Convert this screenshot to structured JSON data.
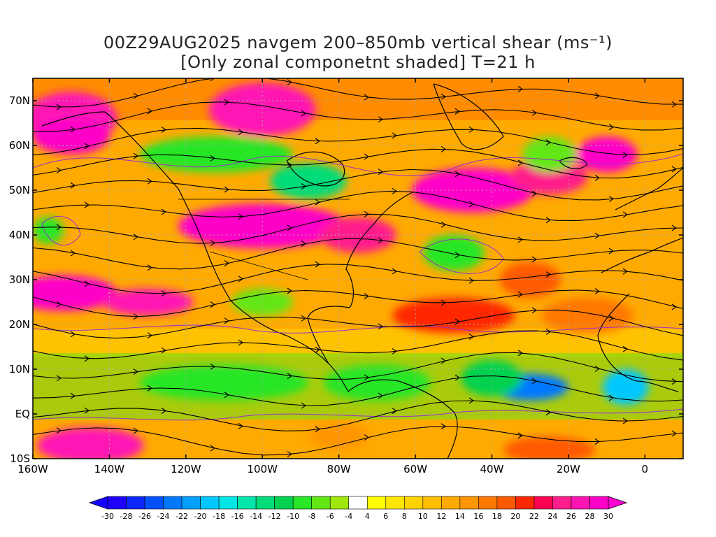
{
  "title": {
    "line1": "00Z29AUG2025 navgem 200–850mb vertical shear (ms⁻¹)",
    "line2": "[Only zonal componetnt shaded] T=21 h"
  },
  "axes": {
    "lat_labels": [
      "70N",
      "60N",
      "50N",
      "40N",
      "30N",
      "20N",
      "10N",
      "EQ",
      "10S"
    ],
    "lon_labels": [
      "160W",
      "140W",
      "120W",
      "100W",
      "80W",
      "60W",
      "40W",
      "20W",
      "0"
    ]
  },
  "colorbar": {
    "labels": [
      "-30",
      "-28",
      "-26",
      "-24",
      "-22",
      "-20",
      "-18",
      "-16",
      "-14",
      "-12",
      "-10",
      "-8",
      "-6",
      "-4",
      "4",
      "6",
      "8",
      "10",
      "12",
      "14",
      "16",
      "18",
      "20",
      "22",
      "24",
      "26",
      "28",
      "30"
    ],
    "colors": [
      "#1e00ff",
      "#0a28ff",
      "#0050ff",
      "#0078ff",
      "#00a0ff",
      "#00c8ff",
      "#00e6e6",
      "#00e6aa",
      "#00dc78",
      "#00d250",
      "#28e628",
      "#64e614",
      "#a0e60a",
      "#ffffff",
      "#ffff00",
      "#ffe600",
      "#ffd200",
      "#ffbe00",
      "#ffaa00",
      "#ff9600",
      "#ff7800",
      "#ff5a00",
      "#ff2800",
      "#ff0050",
      "#ff1e8c",
      "#ff14b4",
      "#ff00c8"
    ],
    "under_color": "#1400ff",
    "over_color": "#ff00d2"
  },
  "shear_blobs": [
    {
      "lon": -150,
      "lat": 66,
      "rx": 12,
      "ry": 6,
      "value": 26
    },
    {
      "lon": -100,
      "lat": 68,
      "rx": 14,
      "ry": 6,
      "value": 26
    },
    {
      "lon": -150,
      "lat": 62,
      "rx": 10,
      "ry": 4,
      "value": 28
    },
    {
      "lon": -112,
      "lat": 58,
      "rx": 20,
      "ry": 4,
      "value": -10
    },
    {
      "lon": -88,
      "lat": 52,
      "rx": 10,
      "ry": 4,
      "value": -14
    },
    {
      "lon": -100,
      "lat": 42,
      "rx": 22,
      "ry": 5,
      "value": 28
    },
    {
      "lon": -75,
      "lat": 40,
      "rx": 10,
      "ry": 4,
      "value": 24
    },
    {
      "lon": -45,
      "lat": 50,
      "rx": 16,
      "ry": 5,
      "value": 28
    },
    {
      "lon": -25,
      "lat": 53,
      "rx": 10,
      "ry": 4,
      "value": 24
    },
    {
      "lon": -10,
      "lat": 58,
      "rx": 8,
      "ry": 4,
      "value": 28
    },
    {
      "lon": -25,
      "lat": 58,
      "rx": 7,
      "ry": 4,
      "value": -8
    },
    {
      "lon": -50,
      "lat": 36,
      "rx": 8,
      "ry": 4,
      "value": -10
    },
    {
      "lon": -152,
      "lat": 27,
      "rx": 14,
      "ry": 4,
      "value": 28
    },
    {
      "lon": -130,
      "lat": 25,
      "rx": 12,
      "ry": 3,
      "value": 26
    },
    {
      "lon": -100,
      "lat": 25,
      "rx": 8,
      "ry": 3,
      "value": -8
    },
    {
      "lon": -156,
      "lat": 41,
      "rx": 4,
      "ry": 3,
      "value": -10
    },
    {
      "lon": -30,
      "lat": 6,
      "rx": 10,
      "ry": 3,
      "value": -24
    },
    {
      "lon": -5,
      "lat": 6,
      "rx": 6,
      "ry": 4,
      "value": -20
    },
    {
      "lon": -40,
      "lat": 8,
      "rx": 8,
      "ry": 4,
      "value": -12
    },
    {
      "lon": -110,
      "lat": 7,
      "rx": 22,
      "ry": 4,
      "value": -10
    },
    {
      "lon": -70,
      "lat": 7,
      "rx": 14,
      "ry": 4,
      "value": -10
    },
    {
      "lon": -145,
      "lat": -7,
      "rx": 14,
      "ry": 4,
      "value": 26
    },
    {
      "lon": -80,
      "lat": -5,
      "rx": 8,
      "ry": 3,
      "value": 14
    },
    {
      "lon": -25,
      "lat": -8,
      "rx": 12,
      "ry": 3,
      "value": 18
    },
    {
      "lon": -50,
      "lat": 22,
      "rx": 16,
      "ry": 4,
      "value": 20
    },
    {
      "lon": -15,
      "lat": 22,
      "rx": 12,
      "ry": 4,
      "value": 16
    },
    {
      "lon": -20,
      "lat": 40,
      "rx": 12,
      "ry": 5,
      "value": 12
    },
    {
      "lon": -30,
      "lat": 30,
      "rx": 8,
      "ry": 4,
      "value": 18
    }
  ]
}
